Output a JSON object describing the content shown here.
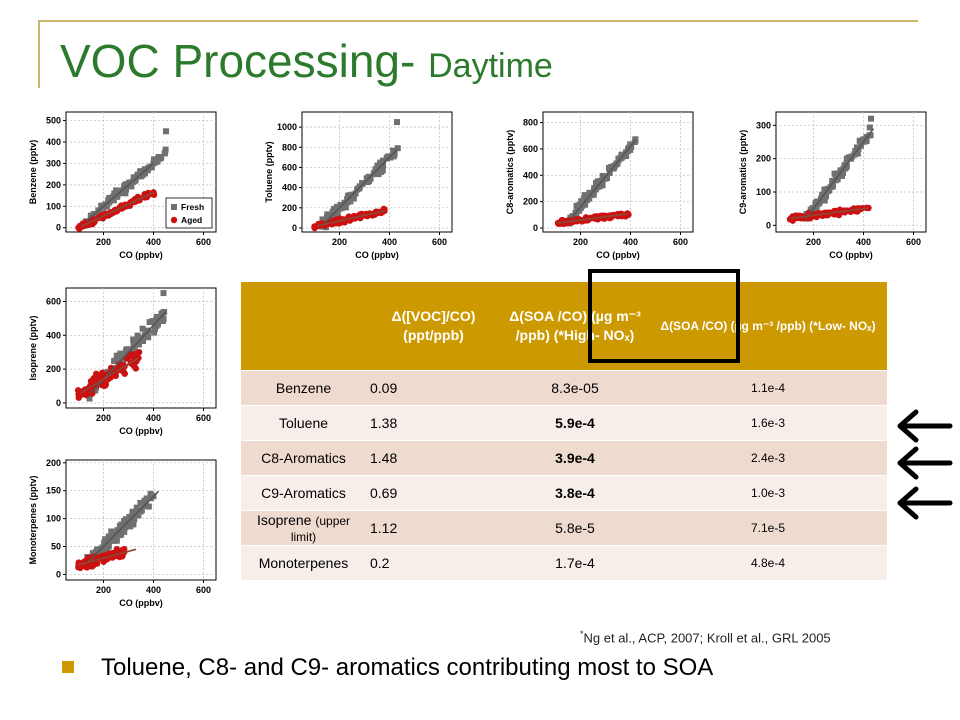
{
  "slide": {
    "title_main": "VOC Processing- ",
    "title_sub": "Daytime",
    "bullet": "Toluene, C8- and C9- aromatics contributing most to SOA",
    "footnote_mark": "*",
    "footnote_text": "Ng et al., ACP, 2007; Kroll et al., GRL 2005"
  },
  "colors": {
    "title": "#2c7a2c",
    "fresh": "#707070",
    "aged": "#cc1111",
    "table_header": "#cc9900",
    "table_row_odd": "#efdad0",
    "table_row_even": "#f7eeea",
    "bullet": "#cc9900"
  },
  "table": {
    "headers": [
      "",
      "Δ([VOC]/CO) (ppt/ppb)",
      "Δ(SOA /CO) (µg m⁻³ /ppb) (*High- NOₓ)",
      "Δ(SOA /CO) (µg m⁻³ /ppb) (*Low- NOₓ)"
    ],
    "rows": [
      {
        "name": "Benzene",
        "note": "",
        "voc_co": "0.09",
        "soa_high": "8.3e-05",
        "soa_low": "1.1e-4",
        "bold": false
      },
      {
        "name": "Toluene",
        "note": "",
        "voc_co": "1.38",
        "soa_high": "5.9e-4",
        "soa_low": "1.6e-3",
        "bold": true
      },
      {
        "name": "C8-Aromatics",
        "note": "",
        "voc_co": "1.48",
        "soa_high": "3.9e-4",
        "soa_low": "2.4e-3",
        "bold": true
      },
      {
        "name": "C9-Aromatics",
        "note": "",
        "voc_co": "0.69",
        "soa_high": "3.8e-4",
        "soa_low": "1.0e-3",
        "bold": true
      },
      {
        "name": "Isoprene ",
        "note": "(upper limit)",
        "voc_co": "1.12",
        "soa_high": "5.8e-5",
        "soa_low": "7.1e-5",
        "bold": false
      },
      {
        "name": "Monoterpenes",
        "note": "",
        "voc_co": "0.2",
        "soa_high": "1.7e-4",
        "soa_low": "4.8e-4",
        "bold": false
      }
    ]
  },
  "chart_data": [
    {
      "type": "scatter",
      "title": "",
      "xlabel": "CO (ppbv)",
      "ylabel": "Benzene (pptv)",
      "xlim": [
        50,
        650
      ],
      "ylim": [
        -20,
        540
      ],
      "xticks": [
        200,
        400,
        600
      ],
      "yticks": [
        0,
        100,
        200,
        300,
        400,
        500
      ],
      "legend": {
        "placement": "bottom-right",
        "entries": [
          "Fresh",
          "Aged"
        ]
      },
      "series": [
        {
          "name": "Fresh",
          "marker": "square",
          "slope": 1.0,
          "intercept": -100,
          "spread": 35,
          "x": [
            120,
            150,
            180,
            200,
            230,
            260,
            290,
            320,
            350,
            380,
            400,
            420,
            450
          ],
          "y": [
            20,
            50,
            80,
            100,
            130,
            160,
            190,
            220,
            250,
            280,
            300,
            330,
            450
          ]
        },
        {
          "name": "Aged",
          "marker": "circle",
          "slope": 0.55,
          "intercept": -55,
          "spread": 18,
          "x": [
            100,
            130,
            160,
            190,
            220,
            250,
            280,
            310,
            340,
            370,
            400
          ],
          "y": [
            0,
            15,
            33,
            50,
            66,
            83,
            99,
            116,
            132,
            149,
            165
          ]
        }
      ],
      "fit_lines": [
        {
          "x": [
            130,
            400
          ],
          "y": [
            30,
            300
          ]
        },
        {
          "x": [
            110,
            400
          ],
          "y": [
            5,
            165
          ]
        }
      ]
    },
    {
      "type": "scatter",
      "title": "",
      "xlabel": "CO (ppbv)",
      "ylabel": "Toluene (pptv)",
      "xlim": [
        50,
        650
      ],
      "ylim": [
        -40,
        1150
      ],
      "xticks": [
        200,
        400,
        600
      ],
      "yticks": [
        0,
        200,
        400,
        600,
        800,
        1000
      ],
      "series": [
        {
          "name": "Fresh",
          "marker": "square",
          "slope": 2.5,
          "intercept": -300,
          "spread": 90,
          "x": [
            130,
            160,
            190,
            220,
            250,
            280,
            310,
            340,
            370,
            400,
            430
          ],
          "y": [
            25,
            100,
            175,
            250,
            325,
            400,
            475,
            550,
            625,
            700,
            1050
          ]
        },
        {
          "name": "Aged",
          "marker": "circle",
          "slope": 0.55,
          "intercept": -40,
          "spread": 35,
          "x": [
            100,
            140,
            180,
            220,
            260,
            300,
            340,
            380
          ],
          "y": [
            15,
            37,
            59,
            81,
            103,
            125,
            147,
            169
          ]
        }
      ],
      "fit_lines": [
        {
          "x": [
            140,
            430
          ],
          "y": [
            50,
            775
          ]
        },
        {
          "x": [
            110,
            380
          ],
          "y": [
            20,
            169
          ]
        }
      ]
    },
    {
      "type": "scatter",
      "title": "",
      "xlabel": "CO (ppbv)",
      "ylabel": "C8-aromatics (pptv)",
      "xlim": [
        50,
        650
      ],
      "ylim": [
        -30,
        880
      ],
      "xticks": [
        200,
        400,
        600
      ],
      "yticks": [
        0,
        200,
        400,
        600,
        800
      ],
      "series": [
        {
          "name": "Fresh",
          "marker": "square",
          "slope": 2.3,
          "intercept": -300,
          "spread": 70,
          "x": [
            150,
            180,
            210,
            240,
            270,
            300,
            330,
            360,
            390,
            420
          ],
          "y": [
            45,
            114,
            183,
            252,
            321,
            390,
            459,
            528,
            597,
            666
          ]
        },
        {
          "name": "Aged",
          "marker": "circle",
          "slope": 0.25,
          "intercept": 10,
          "spread": 25,
          "x": [
            110,
            150,
            190,
            230,
            270,
            310,
            350,
            390
          ],
          "y": [
            38,
            48,
            58,
            68,
            78,
            88,
            98,
            108
          ]
        }
      ],
      "fit_lines": [
        {
          "x": [
            160,
            420
          ],
          "y": [
            68,
            666
          ]
        },
        {
          "x": [
            110,
            390
          ],
          "y": [
            38,
            108
          ]
        }
      ]
    },
    {
      "type": "scatter",
      "title": "",
      "xlabel": "CO (ppbv)",
      "ylabel": "C9-aromatics (pptv)",
      "xlim": [
        50,
        650
      ],
      "ylim": [
        -20,
        340
      ],
      "xticks": [
        200,
        400,
        600
      ],
      "yticks": [
        0,
        100,
        200,
        300
      ],
      "series": [
        {
          "name": "Fresh",
          "marker": "square",
          "slope": 1.0,
          "intercept": -150,
          "spread": 28,
          "x": [
            170,
            200,
            230,
            260,
            290,
            320,
            350,
            380,
            410,
            430
          ],
          "y": [
            20,
            50,
            80,
            110,
            140,
            170,
            200,
            230,
            260,
            320
          ]
        },
        {
          "name": "Aged",
          "marker": "circle",
          "slope": 0.1,
          "intercept": 10,
          "spread": 12,
          "x": [
            110,
            150,
            190,
            230,
            270,
            310,
            350,
            390,
            420
          ],
          "y": [
            21,
            25,
            29,
            33,
            37,
            41,
            45,
            49,
            52
          ]
        }
      ],
      "fit_lines": [
        {
          "x": [
            170,
            440
          ],
          "y": [
            20,
            290
          ]
        },
        {
          "x": [
            110,
            420
          ],
          "y": [
            21,
            52
          ]
        }
      ]
    },
    {
      "type": "scatter",
      "title": "",
      "xlabel": "CO (ppbv)",
      "ylabel": "Isoprene (pptv)",
      "xlim": [
        50,
        650
      ],
      "ylim": [
        -30,
        680
      ],
      "xticks": [
        200,
        400,
        600
      ],
      "yticks": [
        0,
        200,
        400,
        600
      ],
      "series": [
        {
          "name": "Fresh",
          "marker": "square",
          "slope": 1.6,
          "intercept": -180,
          "spread": 80,
          "x": [
            140,
            170,
            200,
            230,
            260,
            290,
            320,
            350,
            380,
            410,
            440
          ],
          "y": [
            44,
            92,
            140,
            188,
            236,
            284,
            332,
            380,
            428,
            476,
            650
          ]
        },
        {
          "name": "Aged",
          "marker": "circle",
          "slope": 0.9,
          "intercept": -40,
          "spread": 70,
          "x": [
            100,
            130,
            160,
            190,
            220,
            250,
            280,
            310,
            340
          ],
          "y": [
            50,
            77,
            104,
            131,
            158,
            185,
            212,
            239,
            266
          ]
        }
      ],
      "fit_lines": [
        {
          "x": [
            150,
            450
          ],
          "y": [
            60,
            540
          ]
        },
        {
          "x": [
            110,
            340
          ],
          "y": [
            60,
            266
          ]
        }
      ]
    },
    {
      "type": "scatter",
      "title": "",
      "xlabel": "CO (ppbv)",
      "ylabel": "Monoterpenes (pptv)",
      "xlim": [
        50,
        650
      ],
      "ylim": [
        -10,
        205
      ],
      "xticks": [
        200,
        400,
        600
      ],
      "yticks": [
        0,
        50,
        100,
        150,
        200
      ],
      "series": [
        {
          "name": "Fresh",
          "marker": "square",
          "slope": 0.45,
          "intercept": -40,
          "spread": 22,
          "x": [
            130,
            160,
            190,
            220,
            250,
            280,
            310,
            340,
            370,
            400
          ],
          "y": [
            18,
            32,
            45,
            59,
            72,
            86,
            99,
            113,
            126,
            140
          ]
        },
        {
          "name": "Aged",
          "marker": "circle",
          "slope": 0.12,
          "intercept": 5,
          "spread": 12,
          "x": [
            100,
            130,
            160,
            190,
            220,
            250,
            280
          ],
          "y": [
            17,
            21,
            24,
            28,
            31,
            35,
            39
          ]
        }
      ],
      "fit_lines": [
        {
          "x": [
            140,
            420
          ],
          "y": [
            23,
            149
          ]
        },
        {
          "x": [
            100,
            330
          ],
          "y": [
            17,
            45
          ]
        }
      ]
    }
  ]
}
